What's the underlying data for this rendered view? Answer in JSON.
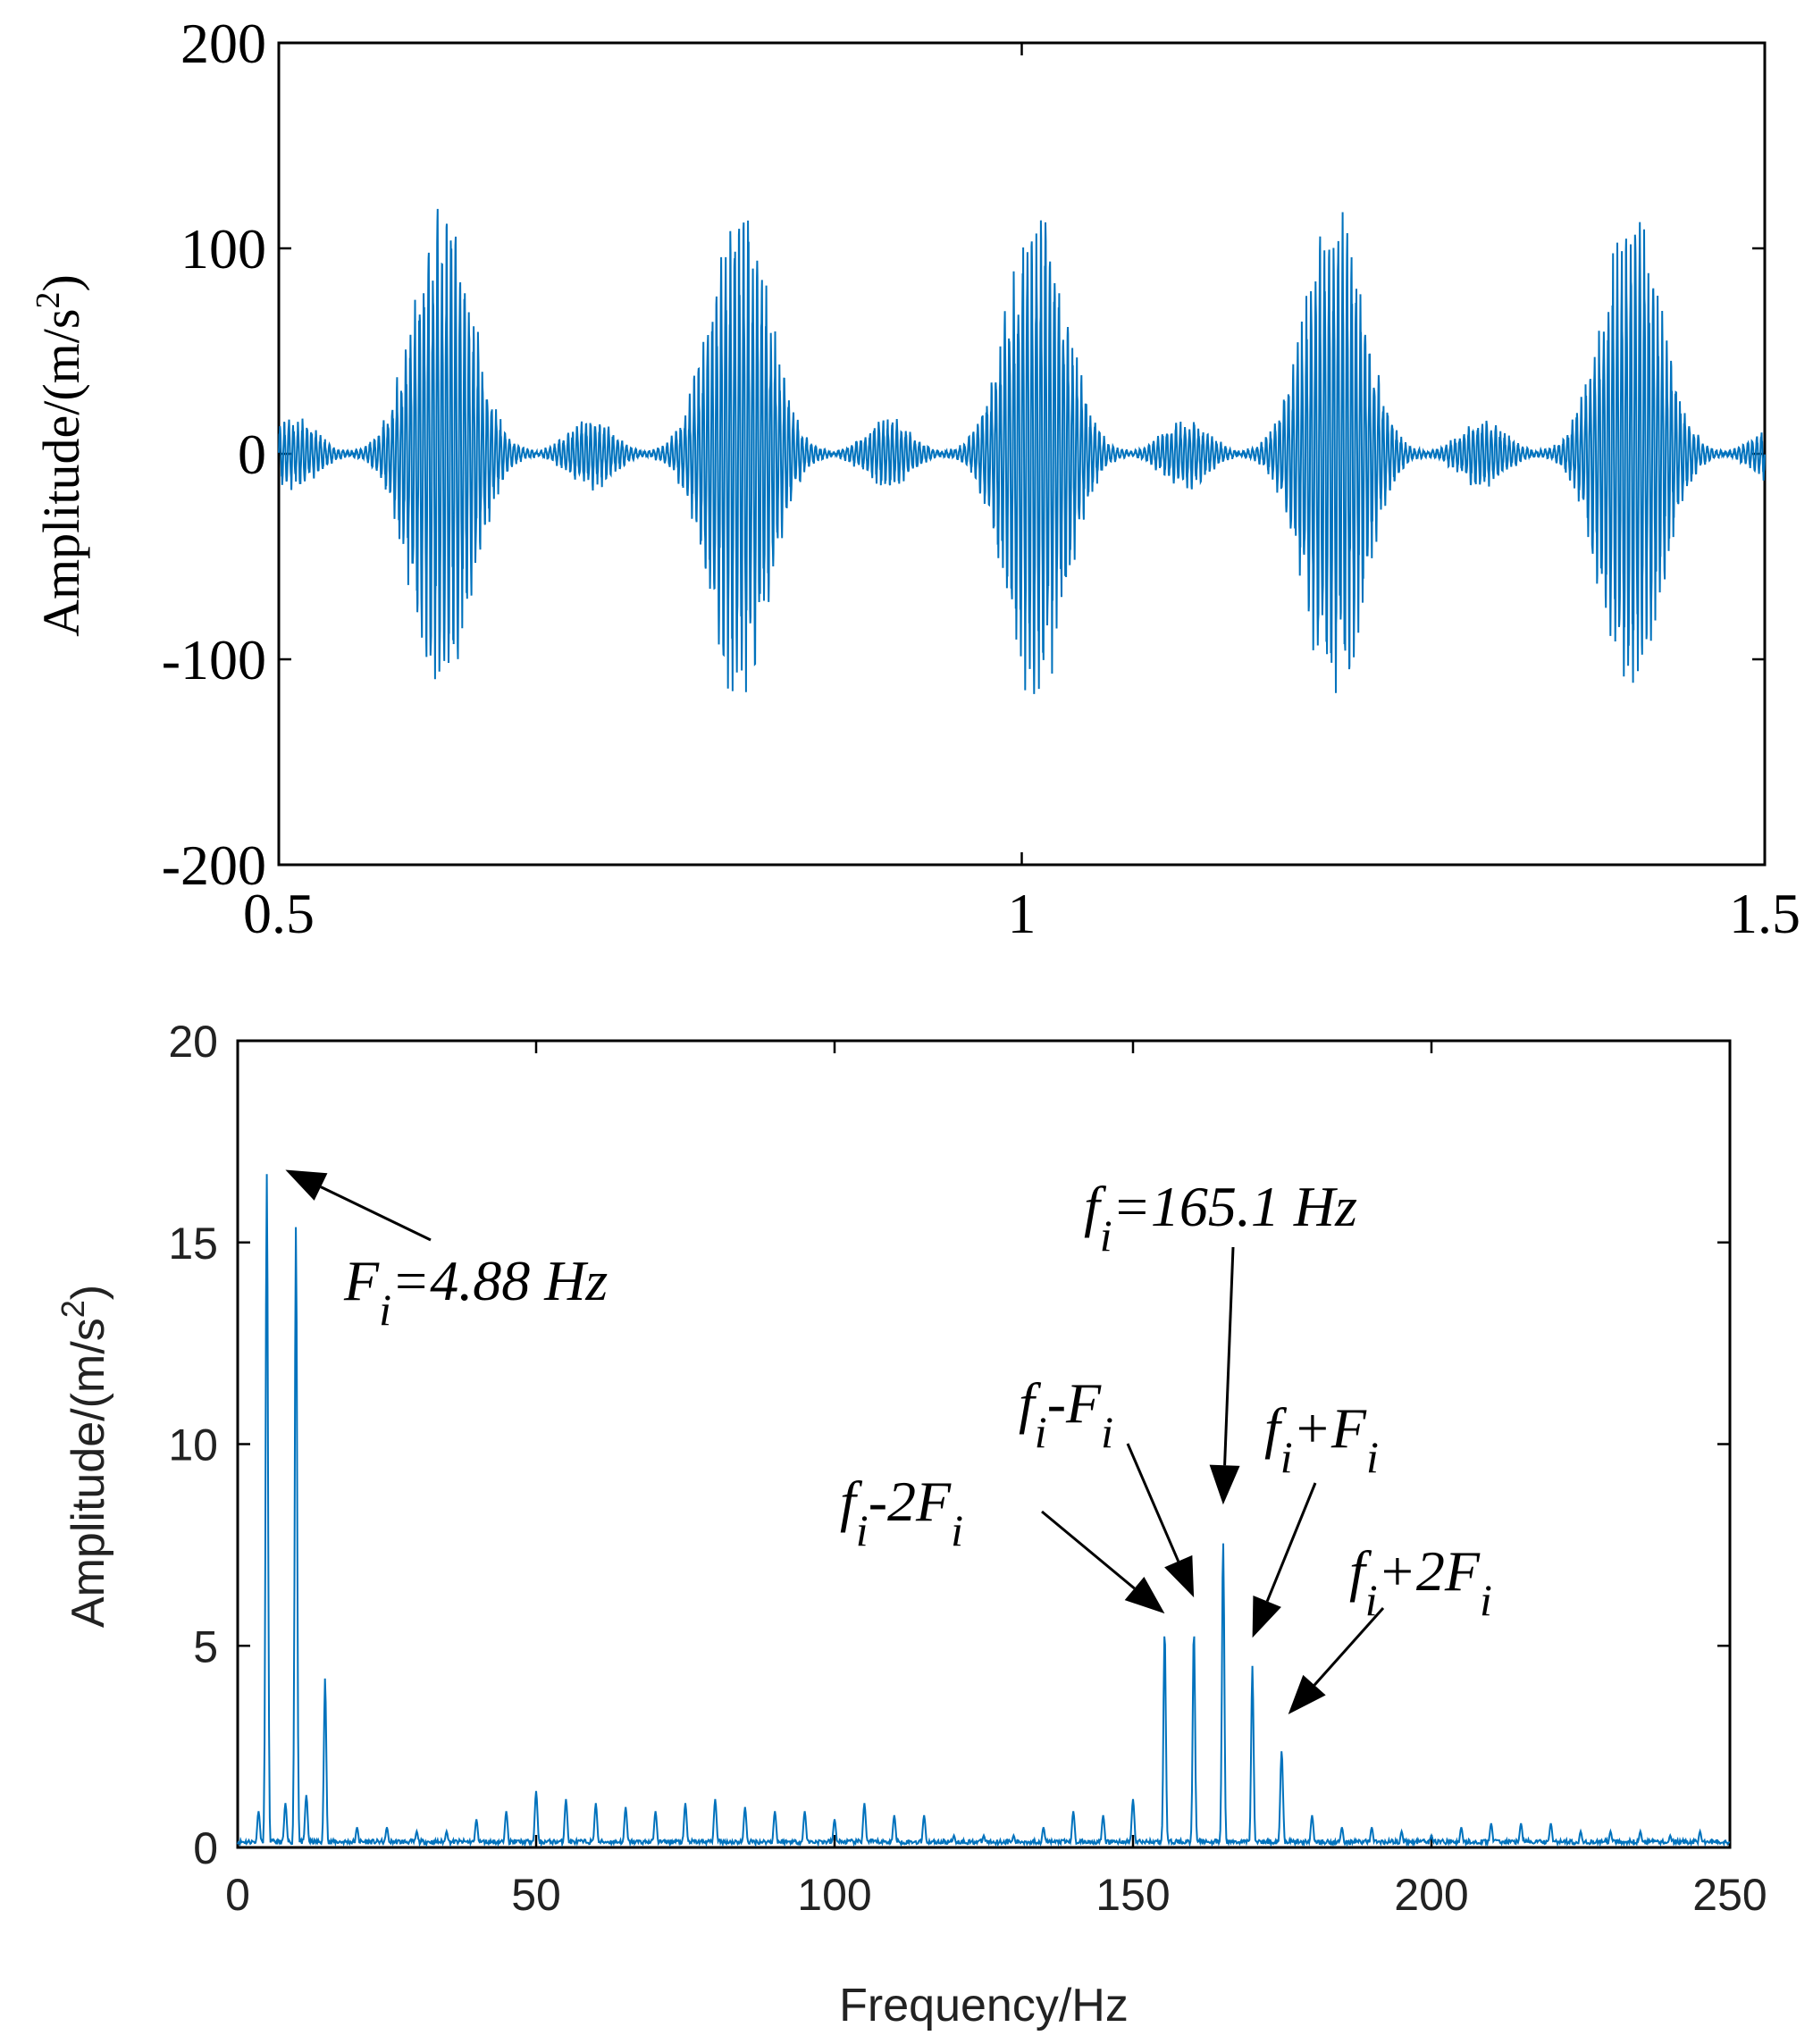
{
  "chart_data": [
    {
      "type": "line",
      "title": "",
      "xlabel": "",
      "ylabel": "Amplitude/(m/s",
      "ylabel_sup": "2",
      "ylabel_close": ")",
      "xlim": [
        0.5,
        1.5
      ],
      "ylim": [
        -200,
        200
      ],
      "xticks": [
        0.5,
        1,
        1.5
      ],
      "xtick_labels": [
        "0.5",
        "1",
        "1.5"
      ],
      "yticks": [
        200,
        100,
        0,
        -100,
        -200
      ],
      "ytick_labels": [
        "200",
        "100",
        "0",
        "-100",
        "-200"
      ],
      "grid": false,
      "signal": {
        "description_type": "impulse bursts",
        "main_burst_centers": [
          0.61,
          0.81,
          1.01,
          1.21,
          1.41
        ],
        "main_burst_peak": 135,
        "main_burst_trough": -125,
        "minor_burst_centers": [
          0.51,
          0.71,
          0.91,
          1.11,
          1.31,
          1.51
        ],
        "minor_burst_amplitude": 18
      },
      "color": "#0072BD"
    },
    {
      "type": "line",
      "title": "",
      "xlabel": "Frequency/Hz",
      "ylabel": "Amplitude/(m/s",
      "ylabel_sup": "2",
      "ylabel_close": ")",
      "xlim": [
        0,
        250
      ],
      "ylim": [
        0,
        20
      ],
      "xticks": [
        0,
        50,
        100,
        150,
        200,
        250
      ],
      "xtick_labels": [
        "0",
        "50",
        "100",
        "150",
        "200",
        "250"
      ],
      "yticks": [
        0,
        5,
        10,
        15,
        20
      ],
      "ytick_labels": [
        "0",
        "5",
        "10",
        "15",
        "20"
      ],
      "grid": false,
      "peaks": [
        {
          "x": 4.88,
          "y": 16.7
        },
        {
          "x": 9.76,
          "y": 15.4
        },
        {
          "x": 14.64,
          "y": 4.2
        },
        {
          "x": 155.3,
          "y": 5.4
        },
        {
          "x": 160.2,
          "y": 5.4
        },
        {
          "x": 165.1,
          "y": 7.6
        },
        {
          "x": 170.0,
          "y": 4.5
        },
        {
          "x": 174.9,
          "y": 2.4
        }
      ],
      "minor_peaks": [
        {
          "x": 3.5,
          "y": 0.9
        },
        {
          "x": 8,
          "y": 1.1
        },
        {
          "x": 11.5,
          "y": 1.3
        },
        {
          "x": 20,
          "y": 0.5
        },
        {
          "x": 25,
          "y": 0.5
        },
        {
          "x": 30,
          "y": 0.4
        },
        {
          "x": 35,
          "y": 0.4
        },
        {
          "x": 40,
          "y": 0.7
        },
        {
          "x": 45,
          "y": 0.9
        },
        {
          "x": 50,
          "y": 1.4
        },
        {
          "x": 55,
          "y": 1.2
        },
        {
          "x": 60,
          "y": 1.1
        },
        {
          "x": 65,
          "y": 1.0
        },
        {
          "x": 70,
          "y": 0.9
        },
        {
          "x": 75,
          "y": 1.1
        },
        {
          "x": 80,
          "y": 1.2
        },
        {
          "x": 85,
          "y": 1.0
        },
        {
          "x": 90,
          "y": 0.9
        },
        {
          "x": 95,
          "y": 0.9
        },
        {
          "x": 100,
          "y": 0.7
        },
        {
          "x": 105,
          "y": 1.1
        },
        {
          "x": 110,
          "y": 0.8
        },
        {
          "x": 115,
          "y": 0.8
        },
        {
          "x": 120,
          "y": 0.3
        },
        {
          "x": 125,
          "y": 0.3
        },
        {
          "x": 130,
          "y": 0.3
        },
        {
          "x": 135,
          "y": 0.5
        },
        {
          "x": 140,
          "y": 0.9
        },
        {
          "x": 145,
          "y": 0.8
        },
        {
          "x": 150,
          "y": 1.2
        },
        {
          "x": 180,
          "y": 0.8
        },
        {
          "x": 185,
          "y": 0.5
        },
        {
          "x": 190,
          "y": 0.5
        },
        {
          "x": 195,
          "y": 0.4
        },
        {
          "x": 200,
          "y": 0.3
        },
        {
          "x": 205,
          "y": 0.5
        },
        {
          "x": 210,
          "y": 0.6
        },
        {
          "x": 215,
          "y": 0.6
        },
        {
          "x": 220,
          "y": 0.6
        },
        {
          "x": 225,
          "y": 0.4
        },
        {
          "x": 230,
          "y": 0.4
        },
        {
          "x": 235,
          "y": 0.4
        },
        {
          "x": 240,
          "y": 0.3
        },
        {
          "x": 245,
          "y": 0.4
        }
      ],
      "annotations": [
        {
          "id": "Fi",
          "main": "F",
          "sub": "i",
          "rest": "=4.88 Hz",
          "tip": {
            "x": 8,
            "y": 16.8
          }
        },
        {
          "id": "fi",
          "main": "f",
          "sub": "i",
          "rest": "=165.1 Hz",
          "tip": {
            "x": 165.1,
            "y": 8.5
          }
        },
        {
          "id": "fi-Fi",
          "main": "f",
          "sub": "i",
          "rest": "-F",
          "sub2": "i",
          "tip": {
            "x": 160.2,
            "y": 6.2
          }
        },
        {
          "id": "fi-2Fi",
          "main": "f",
          "sub": "i",
          "rest": "-2F",
          "sub2": "i",
          "tip": {
            "x": 155.3,
            "y": 5.8
          }
        },
        {
          "id": "fi+Fi",
          "main": "f",
          "sub": "i",
          "rest": "+F",
          "sub2": "i",
          "tip": {
            "x": 170.0,
            "y": 5.2
          }
        },
        {
          "id": "fi+2Fi",
          "main": "f",
          "sub": "i",
          "rest": "+2F",
          "sub2": "i",
          "tip": {
            "x": 176,
            "y": 3.3
          }
        }
      ],
      "color": "#0072BD"
    }
  ]
}
